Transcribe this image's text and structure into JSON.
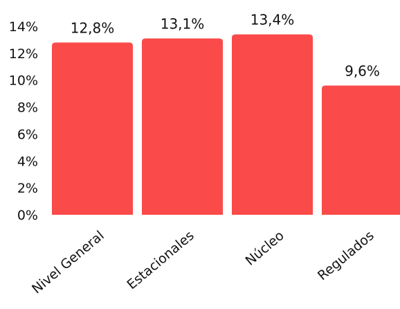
{
  "chart_data": {
    "type": "bar",
    "categories": [
      "Nivel General",
      "Estacionales",
      "Núcleo",
      "Regulados"
    ],
    "values": [
      12.8,
      13.1,
      13.4,
      9.6
    ],
    "value_labels": [
      "12,8%",
      "13,1%",
      "13,4%",
      "9,6%"
    ],
    "title": "",
    "xlabel": "",
    "ylabel": "",
    "ylim": [
      0,
      14
    ],
    "yticks": [
      0,
      2,
      4,
      6,
      8,
      10,
      12,
      14
    ],
    "ytick_labels": [
      "0%",
      "2%",
      "4%",
      "6%",
      "8%",
      "10%",
      "12%",
      "14%"
    ],
    "bar_color": "#fa4a4a",
    "grid": false,
    "legend": "none"
  }
}
